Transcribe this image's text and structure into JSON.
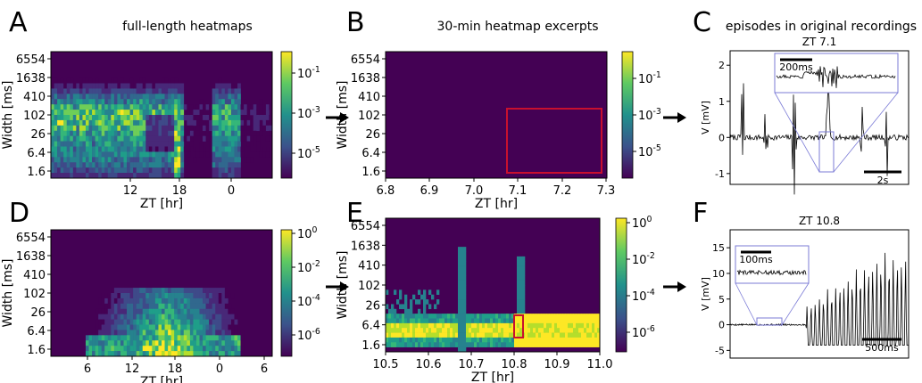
{
  "panel_letters": [
    "A",
    "B",
    "C",
    "D",
    "E",
    "F"
  ],
  "column_titles": {
    "left": "full-length heatmaps",
    "middle": "30-min heatmap excerpts",
    "right": "episodes in original recordings"
  },
  "chart_data": [
    {
      "id": "A",
      "type": "heatmap",
      "xlabel": "ZT [hr]",
      "ylabel": "Width [ms]",
      "x_ticks": [
        "12",
        "18",
        "0"
      ],
      "y_ticks": [
        "6554",
        "1638",
        "410",
        "102",
        "26",
        "6.4",
        "1.6"
      ],
      "colorbar_ticks": [
        "10^-1",
        "10^-3",
        "10^-5"
      ],
      "colormap": [
        "#440154",
        "#3b528b",
        "#21918c",
        "#5ec962",
        "#fde725"
      ]
    },
    {
      "id": "B",
      "type": "heatmap",
      "xlabel": "ZT [hr]",
      "ylabel": "Width [ms]",
      "x_ticks": [
        "6.8",
        "6.9",
        "7.0",
        "7.1",
        "7.2",
        "7.3"
      ],
      "xlim": [
        6.8,
        7.3
      ],
      "y_ticks": [
        "6554",
        "1638",
        "410",
        "102",
        "26",
        "6.4",
        "1.6"
      ],
      "colorbar_ticks": [
        "10^-1",
        "10^-3",
        "10^-5"
      ],
      "highlight_box": {
        "x": [
          7.06,
          7.3
        ],
        "color": "#c8102e"
      }
    },
    {
      "id": "C",
      "type": "line",
      "title": "ZT 7.1",
      "ylabel": "V [mV]",
      "y_ticks": [
        "2",
        "1",
        "0",
        "-1"
      ],
      "ylim": [
        -1.3,
        2.4
      ],
      "scalebar_main": "2s",
      "scalebar_inset": "200ms"
    },
    {
      "id": "D",
      "type": "heatmap",
      "xlabel": "ZT [hr]",
      "ylabel": "Width [ms]",
      "x_ticks": [
        "6",
        "12",
        "18",
        "0",
        "6"
      ],
      "y_ticks": [
        "6554",
        "1638",
        "410",
        "102",
        "26",
        "6.4",
        "1.6"
      ],
      "colorbar_ticks": [
        "10^0",
        "10^-2",
        "10^-4",
        "10^-6"
      ]
    },
    {
      "id": "E",
      "type": "heatmap",
      "xlabel": "ZT [hr]",
      "ylabel": "Width [ms]",
      "x_ticks": [
        "10.5",
        "10.6",
        "10.7",
        "10.8",
        "10.9",
        "11.0"
      ],
      "xlim": [
        10.5,
        11.0
      ],
      "y_ticks": [
        "6554",
        "1638",
        "410",
        "102",
        "26",
        "6.4",
        "1.6"
      ],
      "colorbar_ticks": [
        "10^0",
        "10^-2",
        "10^-4",
        "10^-6"
      ],
      "highlight_box": {
        "x": [
          10.78,
          10.8
        ],
        "color": "#c8102e"
      }
    },
    {
      "id": "F",
      "type": "line",
      "title": "ZT 10.8",
      "ylabel": "V [mV]",
      "y_ticks": [
        "15",
        "10",
        "5",
        "0",
        "-5"
      ],
      "ylim": [
        -6.5,
        18.5
      ],
      "scalebar_main": "500ms",
      "scalebar_inset": "100ms"
    }
  ]
}
